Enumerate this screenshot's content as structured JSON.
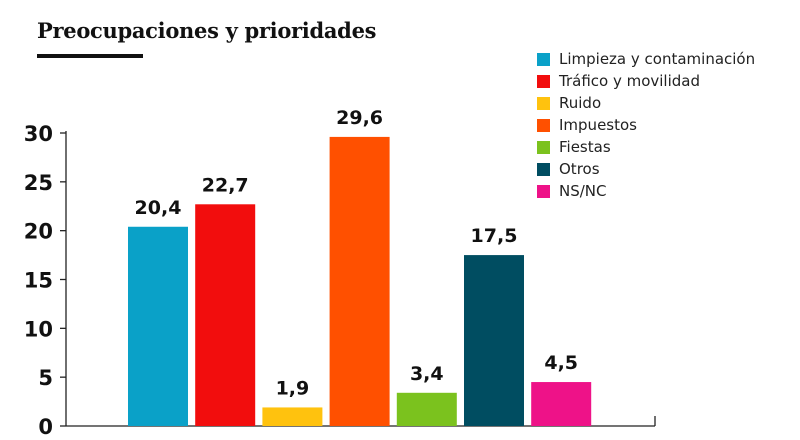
{
  "title": "Preocupaciones y prioridades",
  "chart_data": {
    "type": "bar",
    "title": "Preocupaciones y prioridades",
    "xlabel": "",
    "ylabel": "",
    "ylim": [
      0,
      30
    ],
    "yticks": [
      "0",
      "5",
      "10",
      "15",
      "20",
      "25",
      "30"
    ],
    "grid": false,
    "legend_position": "top-right",
    "categories": [
      "Limpieza y contaminación",
      "Tráfico y movilidad",
      "Ruido",
      "Impuestos",
      "Fiestas",
      "Otros",
      "NS/NC"
    ],
    "values": [
      20.4,
      22.7,
      1.9,
      29.6,
      3.4,
      17.5,
      4.5
    ],
    "value_labels": [
      "20,4",
      "22,7",
      "1,9",
      "29,6",
      "3,4",
      "17,5",
      "4,5"
    ],
    "colors": [
      "#0aa1c8",
      "#f20d0d",
      "#ffc20e",
      "#ff5000",
      "#7bc21e",
      "#004d61",
      "#ee1288"
    ]
  }
}
